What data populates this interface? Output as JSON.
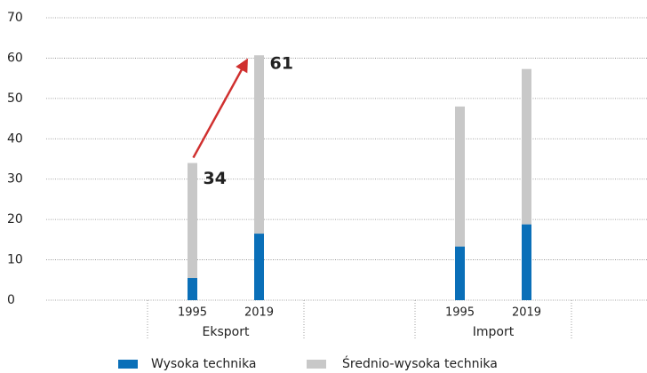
{
  "chart_data": {
    "type": "stacked-bar",
    "categories": [
      "1995",
      "2019",
      "1995",
      "2019"
    ],
    "groups": [
      "Eksport",
      "Import"
    ],
    "series": [
      {
        "name": "Wysoka technika",
        "color": "#0a6fb8",
        "values": [
          5.5,
          16.5,
          13.3,
          18.8
        ]
      },
      {
        "name": "Średnio-wysoka technika",
        "color": "#c8c8c8",
        "values": [
          28.5,
          44.2,
          34.7,
          38.5
        ]
      }
    ],
    "annotations": [
      "34",
      "61"
    ],
    "annotation_color": "#d0302f",
    "ylim": [
      0,
      70
    ],
    "yticks": [
      0,
      10,
      20,
      30,
      40,
      50,
      60,
      70
    ],
    "grid": true
  }
}
